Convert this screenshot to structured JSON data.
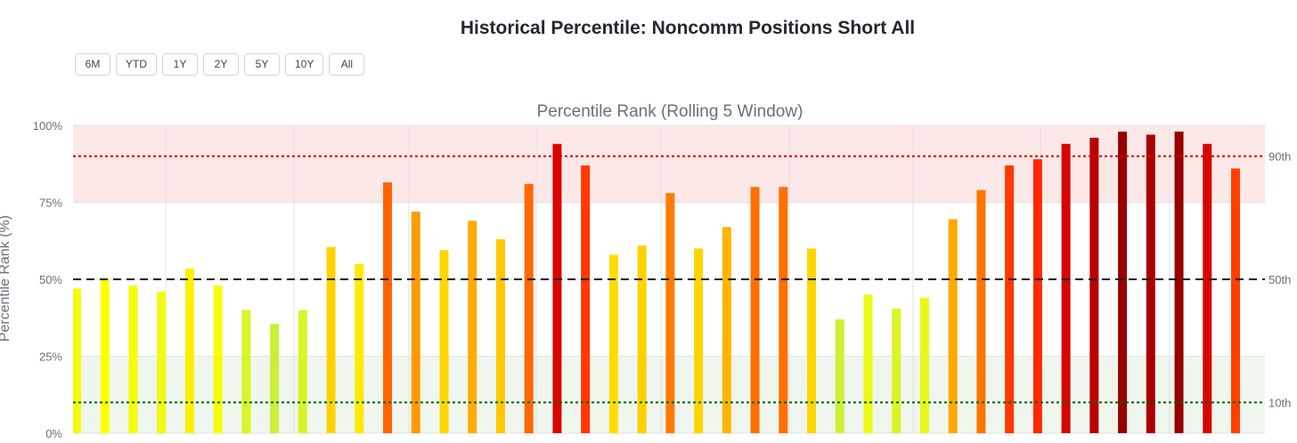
{
  "page": {
    "title": "Historical Percentile: Noncomm Positions Short All"
  },
  "range_buttons": [
    "6M",
    "YTD",
    "1Y",
    "2Y",
    "5Y",
    "10Y",
    "All"
  ],
  "chart_data": {
    "type": "bar",
    "title": "Percentile Rank (Rolling 5 Window)",
    "ylabel": "Percentile Rank (%)",
    "xlabel": "",
    "ylim": [
      0,
      100
    ],
    "yticks": [
      "0%",
      "25%",
      "50%",
      "75%",
      "100%"
    ],
    "grid": true,
    "values": [
      47,
      50,
      48,
      46,
      53.5,
      48,
      40,
      35.5,
      40,
      60.5,
      55,
      81.5,
      72,
      59.5,
      69,
      63,
      81,
      94,
      87,
      58,
      61,
      78,
      60,
      67,
      80,
      80,
      60,
      37,
      45,
      40.5,
      44,
      69.5,
      79,
      87,
      89,
      94,
      96,
      98,
      97,
      98,
      94,
      86
    ],
    "thresholds": [
      {
        "label": "90th",
        "value": 90,
        "color": "#e00000",
        "style": "dotted"
      },
      {
        "label": "50th",
        "value": 50,
        "color": "#111111",
        "style": "dashed"
      },
      {
        "label": "10th",
        "value": 10,
        "color": "#006400",
        "style": "dotted"
      }
    ],
    "bands": [
      {
        "from": 75,
        "to": 100,
        "color": "#fde8e8"
      },
      {
        "from": 0,
        "to": 25,
        "color": "#eef6ee"
      }
    ],
    "colorscale": [
      "#c6ee3c",
      "#ffff00",
      "#ffc000",
      "#ff7000",
      "#ff2000",
      "#cc0000",
      "#990000"
    ]
  }
}
